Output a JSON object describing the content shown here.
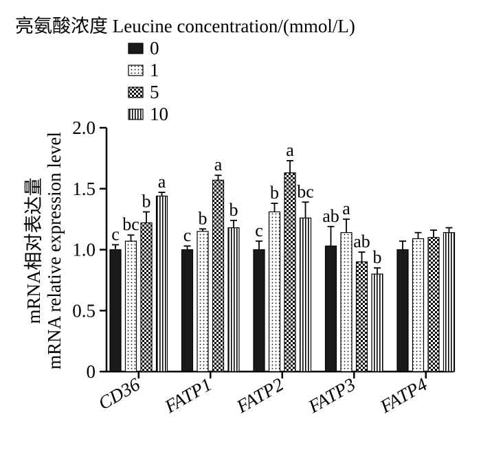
{
  "chart_data": {
    "type": "bar",
    "legend_title": "亮氨酸浓度 Leucine concentration/(mmol/L)",
    "ylabel_zh": "mRNA相对表达量",
    "ylabel_en": "mRNA relative expression level",
    "xlabel": "",
    "ylim": [
      0,
      2.0
    ],
    "yticks": [
      "0",
      "0.5",
      "1.0",
      "1.5",
      "2.0"
    ],
    "ytick_values": [
      0,
      0.5,
      1.0,
      1.5,
      2.0
    ],
    "legend_position": "top-left",
    "grid": false,
    "categories": [
      "CD36",
      "FATP1",
      "FATP2",
      "FATP3",
      "FATP4"
    ],
    "series": [
      {
        "name": "0",
        "pattern": "solid",
        "values": [
          1.0,
          1.0,
          1.0,
          1.03,
          1.0
        ],
        "errors": [
          0.04,
          0.03,
          0.07,
          0.16,
          0.07
        ],
        "letters": [
          "c",
          "c",
          "c",
          "ab",
          ""
        ]
      },
      {
        "name": "1",
        "pattern": "dots",
        "values": [
          1.07,
          1.15,
          1.31,
          1.14,
          1.09
        ],
        "errors": [
          0.05,
          0.02,
          0.07,
          0.11,
          0.05
        ],
        "letters": [
          "bc",
          "b",
          "b",
          "a",
          ""
        ]
      },
      {
        "name": "5",
        "pattern": "checker",
        "values": [
          1.22,
          1.57,
          1.63,
          0.9,
          1.1
        ],
        "errors": [
          0.09,
          0.04,
          0.1,
          0.08,
          0.06
        ],
        "letters": [
          "b",
          "a",
          "a",
          "ab",
          ""
        ]
      },
      {
        "name": "10",
        "pattern": "vlines",
        "values": [
          1.44,
          1.18,
          1.26,
          0.8,
          1.14
        ],
        "errors": [
          0.03,
          0.06,
          0.13,
          0.05,
          0.04
        ],
        "letters": [
          "a",
          "b",
          "bc",
          "b",
          ""
        ]
      }
    ]
  }
}
